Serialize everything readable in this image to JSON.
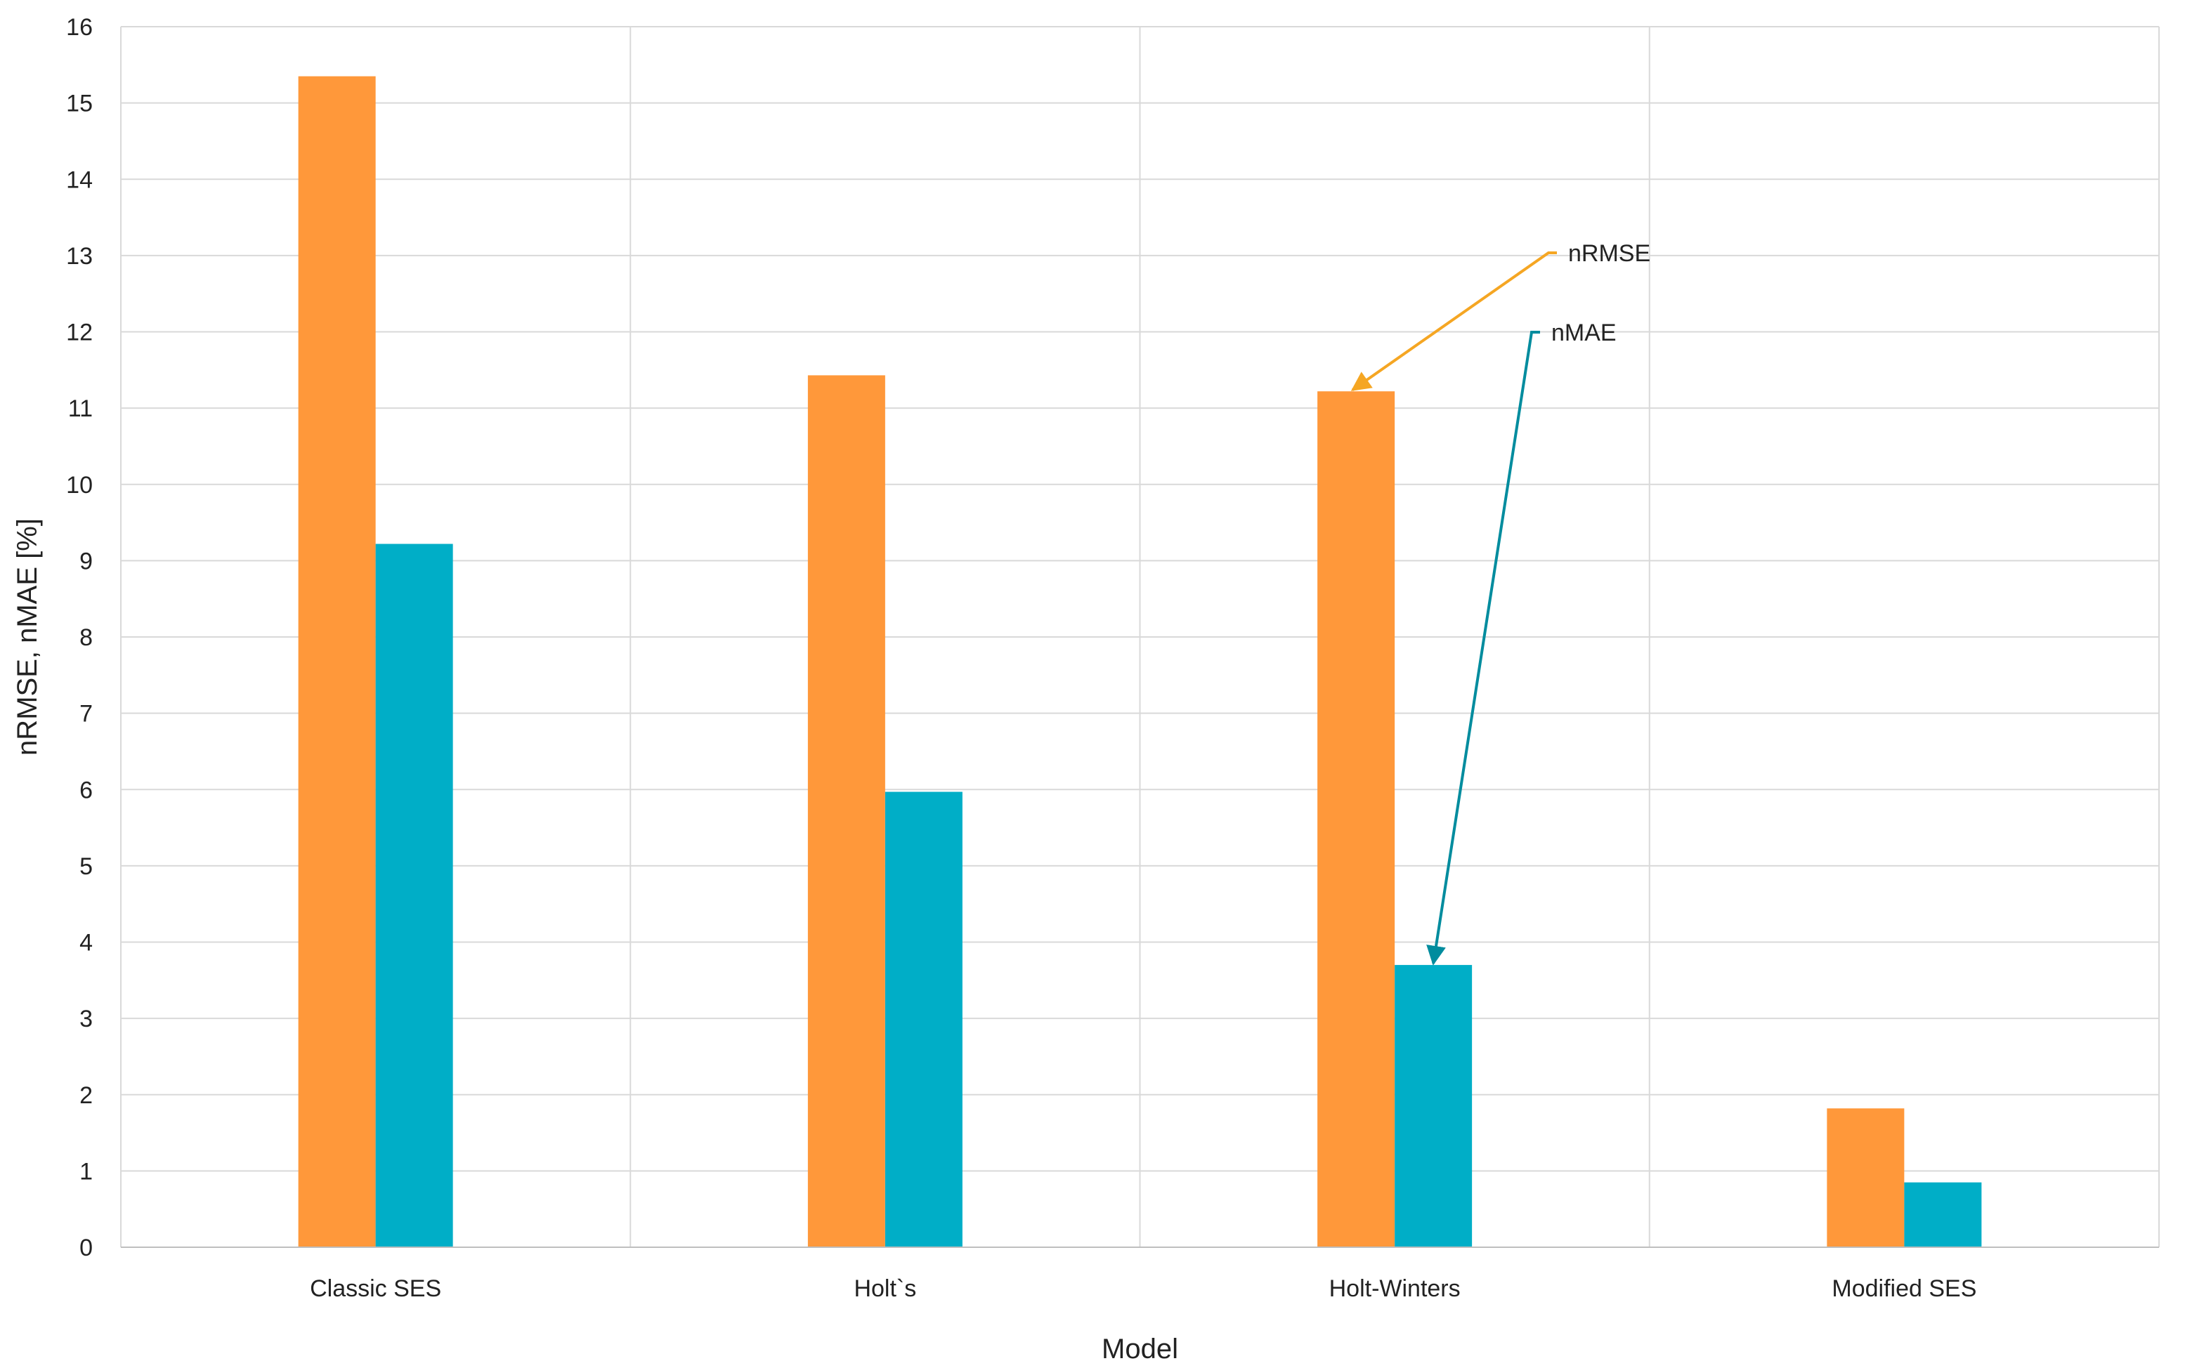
{
  "chart_data": {
    "type": "bar",
    "title": "",
    "xlabel": "Model",
    "ylabel": "nRMSE, nMAE [%]",
    "ylim": [
      0,
      16
    ],
    "yticks": [
      0,
      1,
      2,
      3,
      4,
      5,
      6,
      7,
      8,
      9,
      10,
      11,
      12,
      13,
      14,
      15,
      16
    ],
    "grid": true,
    "legend": "none",
    "categories": [
      "Classic SES",
      "Holt`s",
      "Holt-Winters",
      "Modified SES"
    ],
    "series": [
      {
        "name": "nRMSE",
        "color": "#FF983A",
        "values": [
          15.35,
          11.43,
          11.22,
          1.82
        ]
      },
      {
        "name": "nMAE",
        "color": "#00AEC7",
        "values": [
          9.22,
          5.97,
          3.7,
          0.85
        ]
      }
    ],
    "annotations": [
      {
        "text": "nRMSE",
        "series": "nRMSE",
        "category": "Holt-Winters",
        "color": "#F5A623"
      },
      {
        "text": "nMAE",
        "series": "nMAE",
        "category": "Holt-Winters",
        "color": "#008C9E"
      }
    ]
  }
}
